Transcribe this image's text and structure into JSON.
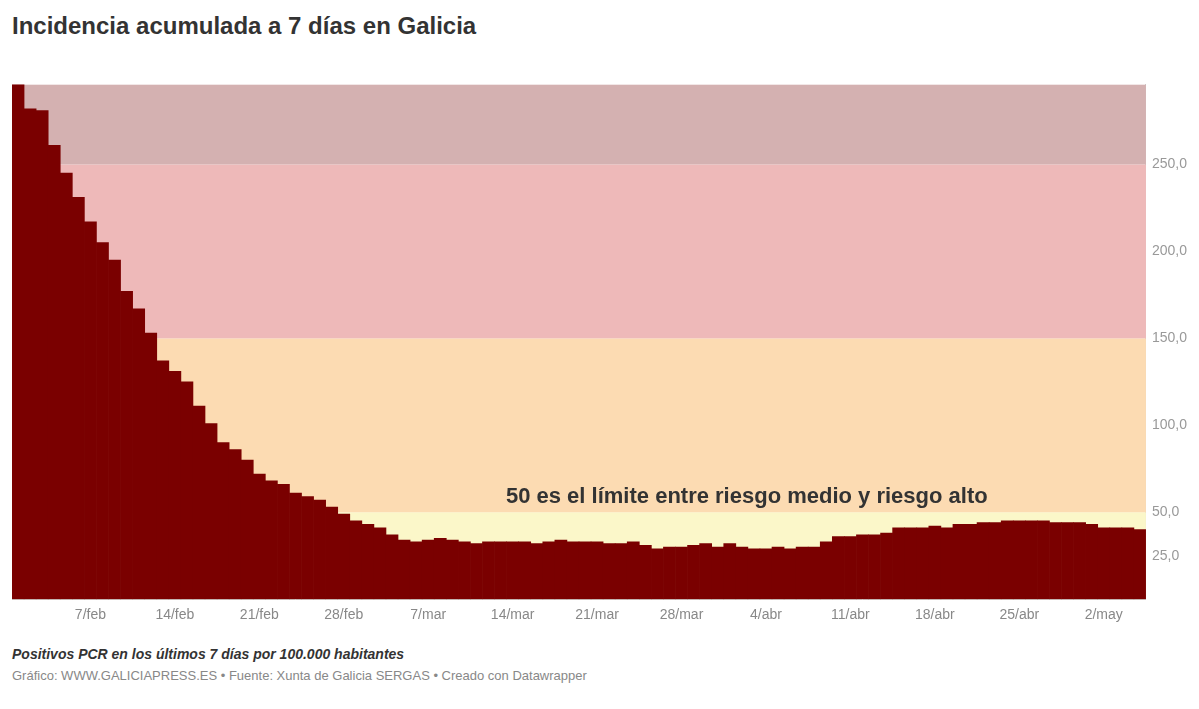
{
  "chart_data": {
    "type": "bar",
    "title": "Incidencia acumulada a 7 días en Galicia",
    "subtitle": "Positivos PCR en los últimos 7 días por 100.000 habitantes",
    "source": "Gráfico: WWW.GALICIAPRESS.ES • Fuente: Xunta de Galicia SERGAS • Creado con Datawrapper",
    "annotation": {
      "text": "50 es el límite entre riesgo medio y riesgo alto",
      "y": 50
    },
    "categories": [
      null,
      null,
      null,
      null,
      null,
      null,
      "7/feb",
      null,
      null,
      null,
      null,
      null,
      null,
      "14/feb",
      null,
      null,
      null,
      null,
      null,
      null,
      "21/feb",
      null,
      null,
      null,
      null,
      null,
      null,
      "28/feb",
      null,
      null,
      null,
      null,
      null,
      null,
      "7/mar",
      null,
      null,
      null,
      null,
      null,
      null,
      "14/mar",
      null,
      null,
      null,
      null,
      null,
      null,
      "21/mar",
      null,
      null,
      null,
      null,
      null,
      null,
      "28/mar",
      null,
      null,
      null,
      null,
      null,
      null,
      "4/abr",
      null,
      null,
      null,
      null,
      null,
      null,
      "11/abr",
      null,
      null,
      null,
      null,
      null,
      null,
      "18/abr",
      null,
      null,
      null,
      null,
      null,
      null,
      "25/abr",
      null,
      null,
      null,
      null,
      null,
      null,
      "2/may",
      null,
      null,
      null
    ],
    "values": [
      296,
      282,
      281,
      261,
      245,
      231,
      217,
      205,
      195,
      177,
      167,
      153,
      137,
      131,
      125,
      111,
      101,
      90,
      86,
      80,
      72,
      68,
      66,
      61,
      59,
      57,
      53,
      49,
      45,
      43,
      41,
      37,
      34,
      33,
      34,
      35,
      34,
      33,
      32,
      33,
      33,
      33,
      33,
      32,
      33,
      34,
      33,
      33,
      33,
      32,
      32,
      33,
      31,
      29,
      30,
      30,
      31,
      32,
      30,
      32,
      30,
      29,
      29,
      30,
      29,
      30,
      30,
      33,
      36,
      36,
      37,
      37,
      38,
      41,
      41,
      41,
      42,
      41,
      43,
      43,
      44,
      44,
      45,
      45,
      45,
      45,
      44,
      44,
      44,
      43,
      41,
      41,
      41,
      40
    ],
    "color": "#7a0000",
    "ylim": [
      0,
      296
    ],
    "yticks": [
      {
        "value": 25,
        "label": "25,0"
      },
      {
        "value": 50,
        "label": "50,0"
      },
      {
        "value": 100,
        "label": "100,0"
      },
      {
        "value": 150,
        "label": "150,0"
      },
      {
        "value": 200,
        "label": "200,0"
      },
      {
        "value": 250,
        "label": "250,0"
      }
    ],
    "grid": false,
    "bands": [
      {
        "from": 0,
        "to": 50,
        "color": "#fbf7c9"
      },
      {
        "from": 50,
        "to": 150,
        "color": "#fcdbb2"
      },
      {
        "from": 150,
        "to": 250,
        "color": "#eeb9b9"
      },
      {
        "from": 250,
        "to": 296,
        "color": "#d4b1b1"
      }
    ]
  }
}
